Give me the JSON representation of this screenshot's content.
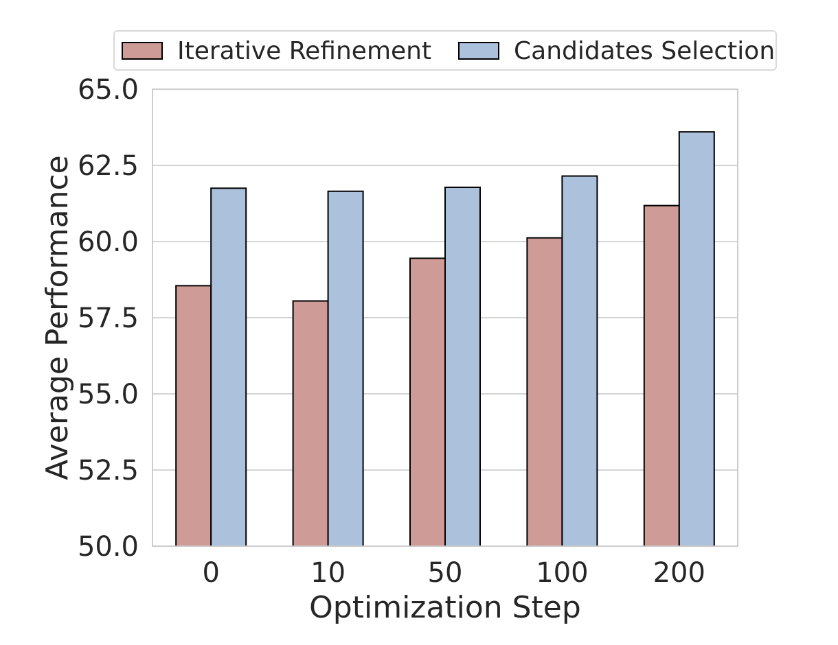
{
  "chart_data": {
    "type": "bar",
    "title": "",
    "xlabel": "Optimization Step",
    "ylabel": "Average Performance",
    "categories": [
      "0",
      "10",
      "50",
      "100",
      "200"
    ],
    "ylim": [
      50.0,
      65.0
    ],
    "yticks": [
      "50.0",
      "52.5",
      "55.0",
      "57.5",
      "60.0",
      "62.5",
      "65.0"
    ],
    "grid": true,
    "legend_position": "top-center",
    "series": [
      {
        "name": "Iterative Refinement",
        "color": "#cf9b97",
        "values": [
          58.55,
          58.05,
          59.45,
          60.12,
          61.18
        ]
      },
      {
        "name": "Candidates Selection",
        "color": "#abc1dc",
        "values": [
          61.75,
          61.65,
          61.78,
          62.15,
          63.6
        ]
      }
    ]
  }
}
